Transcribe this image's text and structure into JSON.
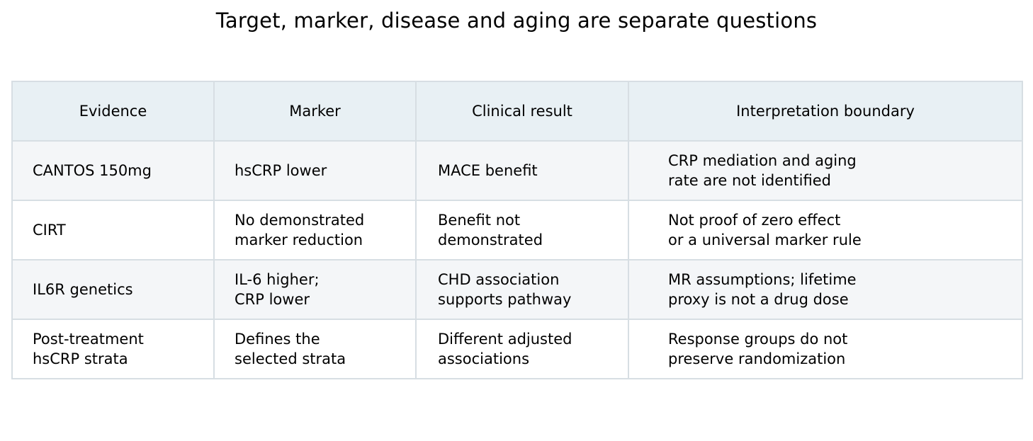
{
  "chart_data": {
    "type": "table",
    "title": "Target, marker, disease and aging are separate questions",
    "columns": [
      "Evidence",
      "Marker",
      "Clinical result",
      "Interpretation boundary"
    ],
    "rows": [
      [
        "CANTOS 150mg",
        "hsCRP lower",
        "MACE benefit",
        "CRP mediation and aging\nrate are not identified"
      ],
      [
        "CIRT",
        "No demonstrated\nmarker reduction",
        "Benefit not\ndemonstrated",
        "Not proof of zero effect\nor a universal marker rule"
      ],
      [
        "IL6R genetics",
        "IL-6 higher;\nCRP lower",
        "CHD association\nsupports pathway",
        "MR assumptions; lifetime\nproxy is not a drug dose"
      ],
      [
        "Post-treatment\nhsCRP strata",
        "Defines the\nselected strata",
        "Different adjusted\nassociations",
        "Response groups do not\npreserve randomization"
      ]
    ]
  }
}
